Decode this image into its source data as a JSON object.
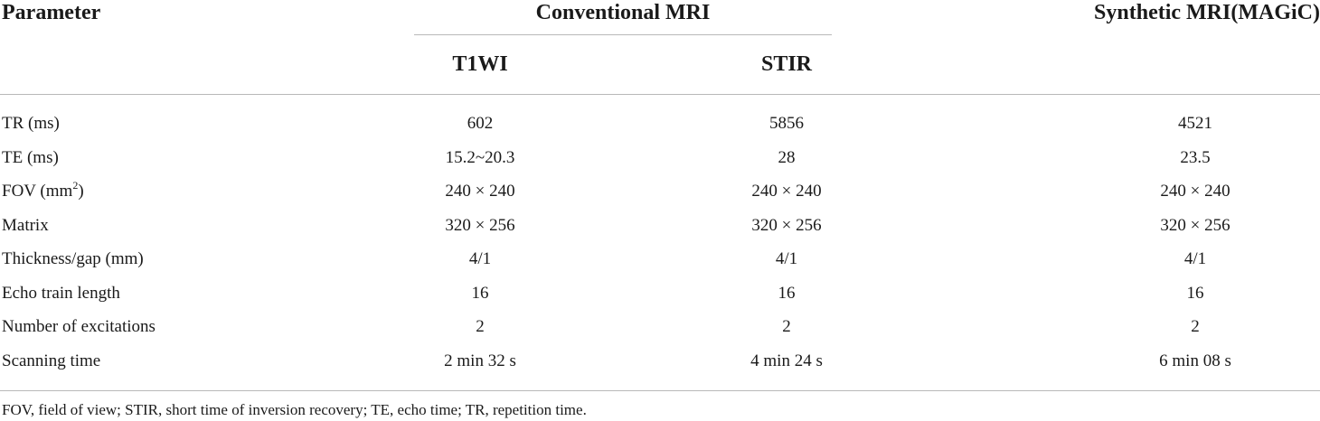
{
  "table": {
    "headers": {
      "parameter": "Parameter",
      "conventional": "Conventional MRI",
      "synthetic": "Synthetic MRI(MAGiC)",
      "t1wi": "T1WI",
      "stir": "STIR"
    },
    "rows": [
      {
        "param": "TR (ms)",
        "t1wi": "602",
        "stir": "5856",
        "synthetic": "4521"
      },
      {
        "param": "TE (ms)",
        "t1wi": "15.2~20.3",
        "stir": "28",
        "synthetic": "23.5"
      },
      {
        "param": "FOV (mm",
        "param_sup": "2",
        "param_suffix": ")",
        "t1wi": "240 × 240",
        "stir": "240 × 240",
        "synthetic": "240 × 240"
      },
      {
        "param": "Matrix",
        "t1wi": "320 × 256",
        "stir": "320 × 256",
        "synthetic": "320 × 256"
      },
      {
        "param": "Thickness/gap (mm)",
        "t1wi": "4/1",
        "stir": "4/1",
        "synthetic": "4/1"
      },
      {
        "param": "Echo train length",
        "t1wi": "16",
        "stir": "16",
        "synthetic": "16"
      },
      {
        "param": "Number of excitations",
        "t1wi": "2",
        "stir": "2",
        "synthetic": "2"
      },
      {
        "param": "Scanning time",
        "t1wi": "2 min 32 s",
        "stir": "4 min 24 s",
        "synthetic": "6 min 08 s"
      }
    ],
    "footnote": "FOV, field of view; STIR, short time of inversion recovery; TE, echo time; TR, repetition time."
  }
}
